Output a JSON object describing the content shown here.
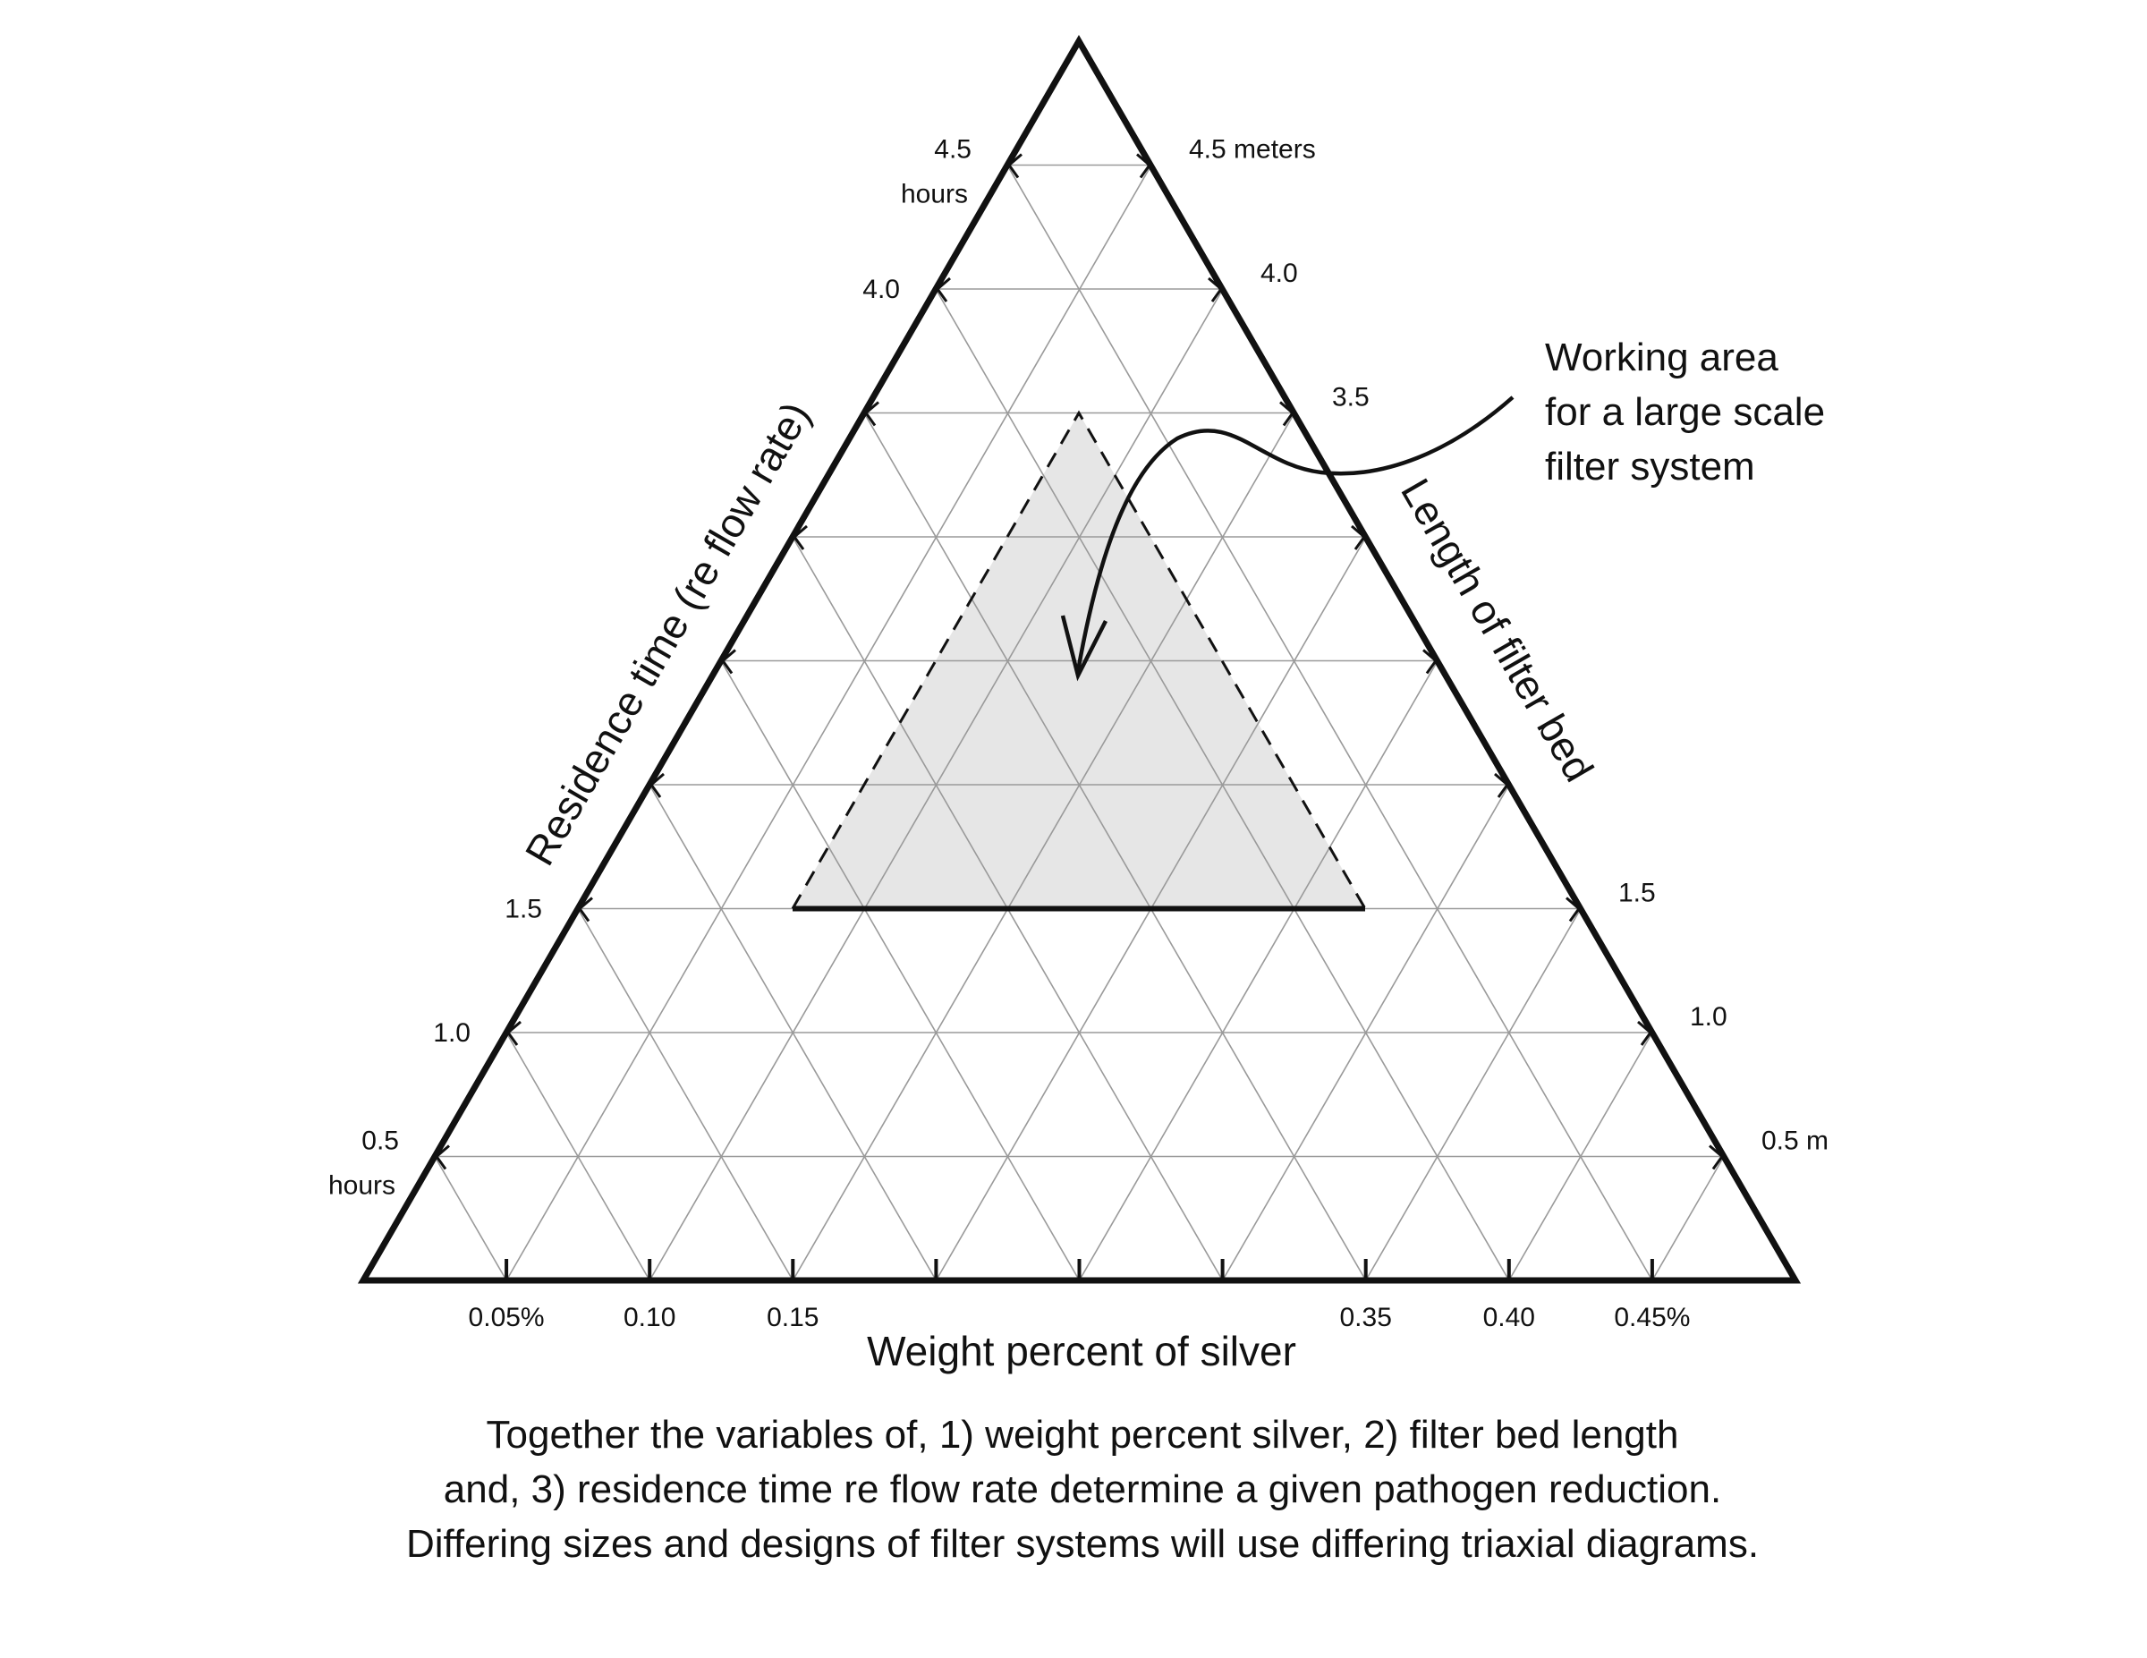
{
  "diagram": {
    "type": "ternary",
    "divisions": 10,
    "left_axis": {
      "title": "Residence time (re flow rate)",
      "ticks": [
        {
          "level": 1,
          "label": "0.5",
          "unit": "hours"
        },
        {
          "level": 2,
          "label": "1.0"
        },
        {
          "level": 3,
          "label": "1.5"
        },
        {
          "level": 8,
          "label": "4.0"
        },
        {
          "level": 9,
          "label": "4.5",
          "unit": "hours"
        }
      ]
    },
    "right_axis": {
      "title": "Length of filter bed",
      "ticks": [
        {
          "level": 1,
          "label": "0.5 m"
        },
        {
          "level": 2,
          "label": "1.0"
        },
        {
          "level": 3,
          "label": "1.5"
        },
        {
          "level": 7,
          "label": "3.5"
        },
        {
          "level": 8,
          "label": "4.0"
        },
        {
          "level": 9,
          "label": "4.5 meters"
        }
      ]
    },
    "bottom_axis": {
      "title": "Weight percent of silver",
      "ticks": [
        {
          "index": 1,
          "label": "0.05%"
        },
        {
          "index": 2,
          "label": "0.10"
        },
        {
          "index": 3,
          "label": "0.15"
        },
        {
          "index": 7,
          "label": "0.35"
        },
        {
          "index": 8,
          "label": "0.40"
        },
        {
          "index": 9,
          "label": "0.45%"
        }
      ]
    },
    "working_area": {
      "label_lines": [
        "Working area",
        "for a large scale",
        "filter system"
      ],
      "bottom_level": 3,
      "top_level": 7,
      "fill": "#e6e6e6"
    },
    "caption": [
      "Together the variables of, 1) weight percent silver, 2) filter bed length",
      "and, 3) residence time re flow rate determine a given pathogen reduction.",
      "Differing sizes and designs of filter systems will use differing triaxial diagrams."
    ]
  }
}
